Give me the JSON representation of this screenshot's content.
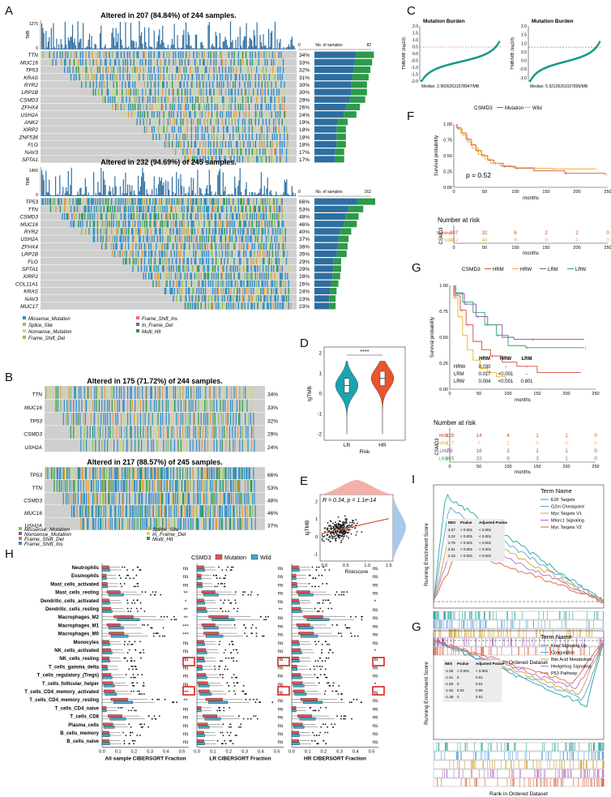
{
  "panel_letters": {
    "A": "A",
    "B": "B",
    "C": "C",
    "D": "D",
    "E": "E",
    "F": "F",
    "G1": "G",
    "H": "H",
    "I": "I",
    "G2": "G"
  },
  "colors": {
    "missense": "#2f8fc8",
    "splice": "#e89c3a",
    "nonsense": "#c8d88a",
    "frame_shift_del": "#86c064",
    "frame_shift_ins": "#e07070",
    "in_frame_del": "#8a5aa8",
    "multi_hit": "#2c9a48",
    "grey": "#cfcfcf",
    "tmb_bar": "#2e6ea0",
    "teal": "#1a9a8a",
    "red": "#d24a3a",
    "gold": "#e8b232",
    "purple": "#7b52ab",
    "green": "#2e9e6e",
    "mutation_box": "#e05252",
    "wild_box": "#43a7c9"
  },
  "chart_data": [
    {
      "type": "heatmap",
      "panel": "A-top",
      "title": "Altered in 207 (84.84%) of 244 samples.",
      "tmb_ymax": "1275",
      "tmb_ylabel": "TMB",
      "barlabel": "No. of samples",
      "bar_xmin": "0",
      "bar_xmax": "82",
      "genes": [
        "TTN",
        "MUC16",
        "TP53",
        "KRAS",
        "RYR2",
        "LRP1B",
        "CSMD3",
        "ZFHX4",
        "USH2A",
        "ANK2",
        "XIRP2",
        "ZNF536",
        "FLG",
        "NAV3",
        "SPTA1"
      ],
      "freqs": [
        "34%",
        "33%",
        "32%",
        "31%",
        "30%",
        "30%",
        "29%",
        "26%",
        "24%",
        "19%",
        "18%",
        "18%",
        "18%",
        "17%",
        "17%"
      ]
    },
    {
      "type": "heatmap",
      "panel": "A-bottom",
      "title": "Altered in 232 (94.69%) of 245 samples.",
      "tmb_ymax": "1456",
      "tmb_ylabel": "TMB",
      "barlabel": "No. of samples",
      "bar_xmin": "0",
      "bar_xmax": "162",
      "genes": [
        "TP53",
        "TTN",
        "CSMD3",
        "MUC16",
        "RYR2",
        "USH2A",
        "ZFHX4",
        "LRP1B",
        "FLG",
        "SPTA1",
        "XIRP2",
        "COL11A1",
        "KRAS",
        "NAV3",
        "MUC17"
      ],
      "freqs": [
        "66%",
        "53%",
        "48%",
        "46%",
        "40%",
        "37%",
        "36%",
        "35%",
        "29%",
        "29%",
        "28%",
        "26%",
        "24%",
        "23%",
        "23%"
      ]
    },
    {
      "type": "heatmap",
      "panel": "B-top",
      "title": "Altered in 175 (71.72%) of 244 samples.",
      "genes": [
        "TTN",
        "MUC16",
        "TP53",
        "CSMD3",
        "USH2A"
      ],
      "freqs": [
        "34%",
        "33%",
        "32%",
        "29%",
        "24%"
      ]
    },
    {
      "type": "heatmap",
      "panel": "B-bottom",
      "title": "Altered in 217 (88.57%) of 245 samples.",
      "genes": [
        "TP53",
        "TTN",
        "CSMD3",
        "MUC16",
        "USH2A"
      ],
      "freqs": [
        "66%",
        "53%",
        "48%",
        "46%",
        "37%"
      ]
    },
    {
      "type": "scatter",
      "panel": "C-left",
      "title": "Mutation Burden",
      "ylabel": "TMB/MB (log10)",
      "yticks": [
        "2.0",
        "1.5",
        "1.0",
        "0.5",
        "0.0",
        "-0.5",
        "-1.0",
        "-1.5",
        "-2.0"
      ],
      "median_text": "Median: 2.96052631578947/MB",
      "median": 0.47
    },
    {
      "type": "scatter",
      "panel": "C-right",
      "title": "Mutation Burden",
      "ylabel": "TMB/MB (log10)",
      "yticks": [
        "2.0",
        "1.5",
        "1.0",
        "0.5",
        "0.0",
        "-0.5",
        "-1.0"
      ],
      "median_text": "Median: 5.92105263157895/MB",
      "median": 0.77
    },
    {
      "type": "line",
      "panel": "F",
      "legend_title": "CSMD3",
      "series": [
        {
          "name": "Mutation",
          "color": "#d24a3a"
        },
        {
          "name": "Wild",
          "color": "#e8b232"
        }
      ],
      "ylabel": "Survival probability",
      "xlabel": "months",
      "xticks": [
        "0",
        "50",
        "100",
        "150",
        "200",
        "250"
      ],
      "yticks": [
        "0.00",
        "0.25",
        "0.50",
        "0.75",
        "1.00"
      ],
      "pvalue": "p = 0.52",
      "risk_title": "Number at risk",
      "risk_axis_label": "CSMD3",
      "risk_rows": [
        {
          "group": "Mutation",
          "values": [
            "207",
            "32",
            "6",
            "2",
            "2",
            "0"
          ]
        },
        {
          "group": "Wild",
          "values": [
            "282",
            "40",
            "9",
            "3",
            "1",
            "0"
          ]
        }
      ],
      "risk_xticks": [
        "0",
        "50",
        "100",
        "150",
        "200",
        "250"
      ]
    },
    {
      "type": "line",
      "panel": "G-km",
      "legend_title": "CSMD3",
      "series": [
        {
          "name": "HRM",
          "color": "#d24a3a"
        },
        {
          "name": "HRW",
          "color": "#e8b232"
        },
        {
          "name": "LRM",
          "color": "#7b52ab"
        },
        {
          "name": "LRW",
          "color": "#2e9e6e"
        }
      ],
      "ylabel": "Survival probability",
      "xlabel": "months",
      "xticks": [
        "0",
        "50",
        "100",
        "150",
        "200",
        "250"
      ],
      "yticks": [
        "0.00",
        "0.25",
        "0.50",
        "0.75",
        "1.00"
      ],
      "pvalue_table": {
        "header": [
          "HRM",
          "HRW",
          "LRM"
        ],
        "rows": [
          {
            "label": "HRW",
            "values": [
              "0.030",
              "-",
              "-"
            ]
          },
          {
            "label": "LRM",
            "values": [
              "0.017",
              "<0.001",
              "-"
            ]
          },
          {
            "label": "LRW",
            "values": [
              "0.004",
              "<0.001",
              "0.801"
            ]
          }
        ]
      },
      "risk_title": "Number at risk",
      "risk_axis_label": "CSMD3",
      "risk_rows": [
        {
          "group": "HRM",
          "values": [
            "128",
            "14",
            "4",
            "1",
            "1",
            "0"
          ]
        },
        {
          "group": "HRW",
          "values": [
            "117",
            "7",
            "1",
            "0",
            "0",
            "0"
          ]
        },
        {
          "group": "LRM",
          "values": [
            "79",
            "18",
            "2",
            "1",
            "1",
            "0"
          ]
        },
        {
          "group": "LRW",
          "values": [
            "165",
            "33",
            "9",
            "3",
            "1",
            "0"
          ]
        }
      ],
      "risk_xticks": [
        "0",
        "50",
        "100",
        "150",
        "200",
        "250"
      ]
    },
    {
      "type": "box",
      "panel": "D",
      "ylabel": "lgTMB",
      "xlabel": "Risk",
      "categories": [
        "LR",
        "HR"
      ],
      "sig": "****",
      "yticks": [
        "2",
        "1",
        "0",
        "-1",
        "-2"
      ],
      "median": [
        0.4,
        0.75
      ]
    },
    {
      "type": "scatter",
      "panel": "E",
      "annotation": "R = 0.34, p = 1.1e-14",
      "ylabel": "lgTMB",
      "xlabel": "Riskscore",
      "xticks": [
        "0.0",
        "0.5",
        "1.0",
        "1.5"
      ],
      "yticks": [
        "2",
        "1",
        "0",
        "-1"
      ],
      "fit": {
        "intercept": 0.2,
        "slope": 0.55
      }
    },
    {
      "type": "box",
      "panel": "H",
      "legend_title": "CSMD3",
      "legend": [
        "Mutation",
        "Wild"
      ],
      "cells": [
        "Neutrophils",
        "Eosinophils",
        "Mast_cells_activated",
        "Mast_cells_resting",
        "Dendritic_cells_activated",
        "Dendritic_cells_resting",
        "Macrophages_M2",
        "Macrophages_M1",
        "Macrophages_M0",
        "Monocytes",
        "NK_cells_activated",
        "NK_cells_resting",
        "T_cells_gamma_delta",
        "T_cells_regulatory_(Tregs)",
        "T_cells_follicular_helper",
        "T_cells_CD4_memory_activated",
        "T_cells_CD4_memory_resting",
        "T_cells_CD4_naive",
        "T_cells_CD8",
        "Plasma_cells",
        "B_cells_memory",
        "B_cells_naive"
      ],
      "subplots": [
        {
          "xlabel": "All sample CIBERSORT Fraction",
          "xticks": [
            "0.0",
            "0.1",
            "0.2",
            "0.3",
            "0.4",
            "0.5"
          ],
          "sig": [
            "ns",
            "ns",
            "ns",
            "**",
            "*",
            "**",
            "**",
            "***",
            "***",
            "ns",
            "ns",
            "ns",
            "ns",
            "ns",
            "ns",
            "***",
            "**",
            "ns",
            "ns",
            "ns",
            "ns",
            "ns"
          ]
        },
        {
          "xlabel": "LR CIBERSORT Fraction",
          "xticks": [
            "0.0",
            "0.1",
            "0.2",
            "0.3",
            "0.4",
            "0.5"
          ],
          "sig": [
            "ns",
            "ns",
            "ns",
            "ns",
            "ns",
            "**",
            "ns",
            "ns",
            "ns",
            "ns",
            "ns",
            "ns",
            "ns",
            "ns",
            "ns",
            "ns",
            "ns",
            "ns",
            "ns",
            "ns",
            "ns",
            "ns"
          ]
        },
        {
          "xlabel": "HR CIBERSORT Fraction",
          "xticks": [
            "0.0",
            "0.1",
            "0.2",
            "0.3",
            "0.4",
            "0.5"
          ],
          "sig": [
            "ns",
            "ns",
            "ns",
            "ns",
            "*",
            "ns",
            "ns",
            "ns",
            "ns",
            "ns",
            "*",
            "ns",
            "ns",
            "ns",
            "*",
            "ns",
            "ns",
            "ns",
            "ns",
            "ns",
            "ns",
            "ns"
          ]
        }
      ]
    },
    {
      "type": "line",
      "panel": "I",
      "ylabel": "Running Enrichment Score",
      "xlabel": "Rank in Ordered Dataset",
      "legend_title": "Term Name",
      "series": [
        {
          "name": "E2F Targets",
          "color": "#2aa39a"
        },
        {
          "name": "G2m Checkpoint",
          "color": "#5aa0d8"
        },
        {
          "name": "Myc Targets V1",
          "color": "#d0a030"
        },
        {
          "name": "Mtorc1 Signaling",
          "color": "#b070c8"
        },
        {
          "name": "Myc Targets V2",
          "color": "#e06040"
        }
      ],
      "table": {
        "header": [
          "NES",
          "Pvalue",
          "Adjusted Pvalue"
        ],
        "rows": [
          [
            "3.37",
            "< 0.001",
            "< 0.001"
          ],
          [
            "3.22",
            "< 0.001",
            "< 0.001"
          ],
          [
            "2.78",
            "< 0.001",
            "< 0.001"
          ],
          [
            "2.51",
            "< 0.001",
            "< 0.001"
          ],
          [
            "2.43",
            "< 0.001",
            "< 0.001"
          ]
        ]
      }
    },
    {
      "type": "line",
      "panel": "G-gsea",
      "ylabel": "Running Enrichment Score",
      "xlabel": "Rank in Ordered Dataset",
      "legend_title": "Term Name",
      "series": [
        {
          "name": "Kras Signaling Up",
          "color": "#2aa39a"
        },
        {
          "name": "Coagulation",
          "color": "#5aa0d8"
        },
        {
          "name": "Bile Acid Metabolism",
          "color": "#d0a030"
        },
        {
          "name": "Hedgehog Signaling",
          "color": "#b070c8"
        },
        {
          "name": "P53 Pathway",
          "color": "#e06040"
        }
      ],
      "table": {
        "header": [
          "NES",
          "Pvalue",
          "Adjusted Pvalue"
        ],
        "rows": [
          [
            "-1.56",
            "< 0.001",
            "< 0.001"
          ],
          [
            "-1.51",
            "0",
            "0.01"
          ],
          [
            "-1.50",
            "0",
            "0.01"
          ],
          [
            "-1.52",
            "0.02",
            "0.05"
          ],
          [
            "-1.48",
            "0",
            "0.01"
          ]
        ]
      }
    }
  ],
  "legendA": {
    "items": [
      "Missense_Mutation",
      "Splice_Site",
      "Nonsense_Mutation",
      "Frame_Shift_Del",
      "Frame_Shift_Ins",
      "In_Frame_Del",
      "Multi_Hit"
    ]
  },
  "legendB": {
    "items": [
      "Missense_Mutation",
      "Nonsense_Mutation",
      "Frame_Shift_Del",
      "Frame_Shift_Ins",
      "Splice_Site",
      "In_Frame_Del",
      "Multi_Hit"
    ]
  }
}
